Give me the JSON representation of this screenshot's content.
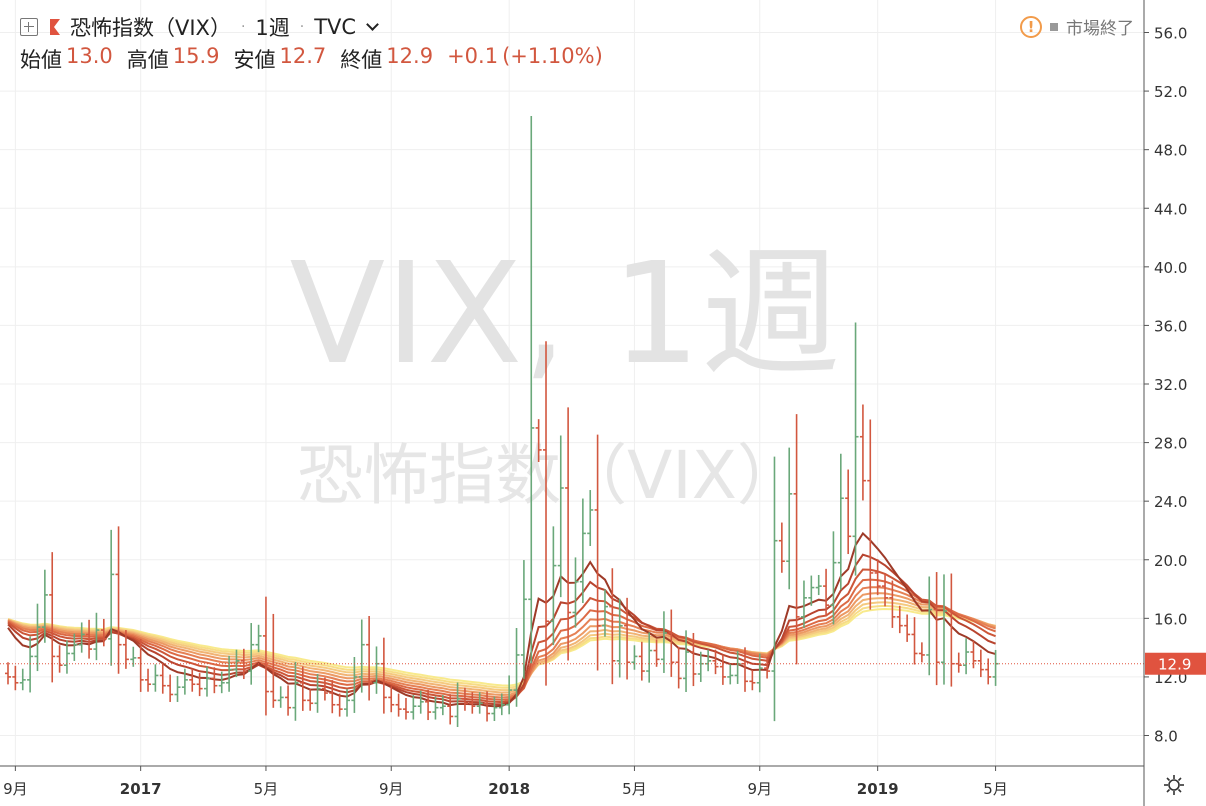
{
  "header": {
    "symbol_name": "恐怖指数（VIX）",
    "interval": "1週",
    "exchange": "TVC",
    "open_label": "始値",
    "open_value": "13.0",
    "high_label": "高値",
    "high_value": "15.9",
    "low_label": "安値",
    "low_value": "12.7",
    "close_label": "終値",
    "close_value": "12.9",
    "change": "+0.1",
    "change_pct": "(+1.10%)",
    "market_status": "市場終了"
  },
  "watermark": {
    "line1": "VIX, 1週",
    "line2": "恐怖指数（VIX）"
  },
  "price_axis": {
    "ticks": [
      "8.0",
      "12.0",
      "16.0",
      "20.0",
      "24.0",
      "28.0",
      "32.0",
      "36.0",
      "40.0",
      "44.0",
      "48.0",
      "52.0",
      "56.0"
    ],
    "last_price_label": "12.9"
  },
  "time_axis": {
    "labels": [
      "9月",
      "2017",
      "5月",
      "9月",
      "2018",
      "5月",
      "9月",
      "2019",
      "5月"
    ]
  },
  "colors": {
    "up": "#6aa87a",
    "down": "#d2573f",
    "last_price": "#e0533f",
    "ribbon": [
      "#9e3a28",
      "#b8442f",
      "#cc5638",
      "#dc6a45",
      "#e58054",
      "#ec9a64",
      "#f1b475",
      "#f5ca80",
      "#f7dc86",
      "#f8ea8c"
    ]
  },
  "chart_data": {
    "type": "ohlc",
    "title": "恐怖指数（VIX）",
    "interval": "1週",
    "ylim": [
      6.5,
      57.5
    ],
    "y_ticks": [
      8,
      12,
      16,
      20,
      24,
      28,
      32,
      36,
      40,
      44,
      48,
      52,
      56
    ],
    "last_close": 12.9,
    "ribbon_ema_periods": [
      10,
      15,
      20,
      25,
      30,
      35,
      40,
      45,
      50,
      55
    ],
    "date_labels": [
      {
        "label": "9月",
        "week": 1
      },
      {
        "label": "2017",
        "week": 18
      },
      {
        "label": "5月",
        "week": 35
      },
      {
        "label": "9月",
        "week": 52
      },
      {
        "label": "2018",
        "week": 68
      },
      {
        "label": "5月",
        "week": 85
      },
      {
        "label": "9月",
        "week": 102
      },
      {
        "label": "2019",
        "week": 118
      },
      {
        "label": "5月",
        "week": 134
      }
    ],
    "weekly_close": [
      12.0,
      11.6,
      11.8,
      13.4,
      15.4,
      17.6,
      13.4,
      12.8,
      13.6,
      14.2,
      14.9,
      13.9,
      15.2,
      14.6,
      19.0,
      14.2,
      13.2,
      13.3,
      11.8,
      11.5,
      12.1,
      11.4,
      10.8,
      11.3,
      11.8,
      11.5,
      11.2,
      11.9,
      11.4,
      11.6,
      12.5,
      13.1,
      12.4,
      14.2,
      14.8,
      11.0,
      10.4,
      10.6,
      9.9,
      11.6,
      10.4,
      10.2,
      11.2,
      10.9,
      10.1,
      9.8,
      10.4,
      12.0,
      14.2,
      11.6,
      12.9,
      10.6,
      10.1,
      9.8,
      9.6,
      10.0,
      10.3,
      9.6,
      9.9,
      10.0,
      9.3,
      10.5,
      10.2,
      10.0,
      10.2,
      9.5,
      9.9,
      10.1,
      11.1,
      13.5,
      17.3,
      29.0,
      27.5,
      15.8,
      19.6,
      24.9,
      16.4,
      18.5,
      21.8,
      23.4,
      15.5,
      16.8,
      13.1,
      15.5,
      13.0,
      13.4,
      12.4,
      13.8,
      13.2,
      15.0,
      13.0,
      11.9,
      13.7,
      12.2,
      12.9,
      13.1,
      12.7,
      12.0,
      12.1,
      12.9,
      11.7,
      11.6,
      12.6,
      12.4,
      21.3,
      19.9,
      24.5,
      16.1,
      17.4,
      18.1,
      18.2,
      16.9,
      19.8,
      24.2,
      21.6,
      28.4,
      25.4,
      19.1,
      18.2,
      17.4,
      16.1,
      15.5,
      14.9,
      13.6,
      13.5,
      16.6,
      13.0,
      16.5,
      12.9,
      12.8,
      13.7,
      13.1,
      12.5,
      12.0,
      12.9
    ],
    "visible_spikes": [
      {
        "week": 71,
        "high": 50.3
      },
      {
        "week": 72,
        "high": 29.6
      },
      {
        "week": 115,
        "high": 36.2
      },
      {
        "week": 36,
        "high": 16.3
      }
    ]
  }
}
